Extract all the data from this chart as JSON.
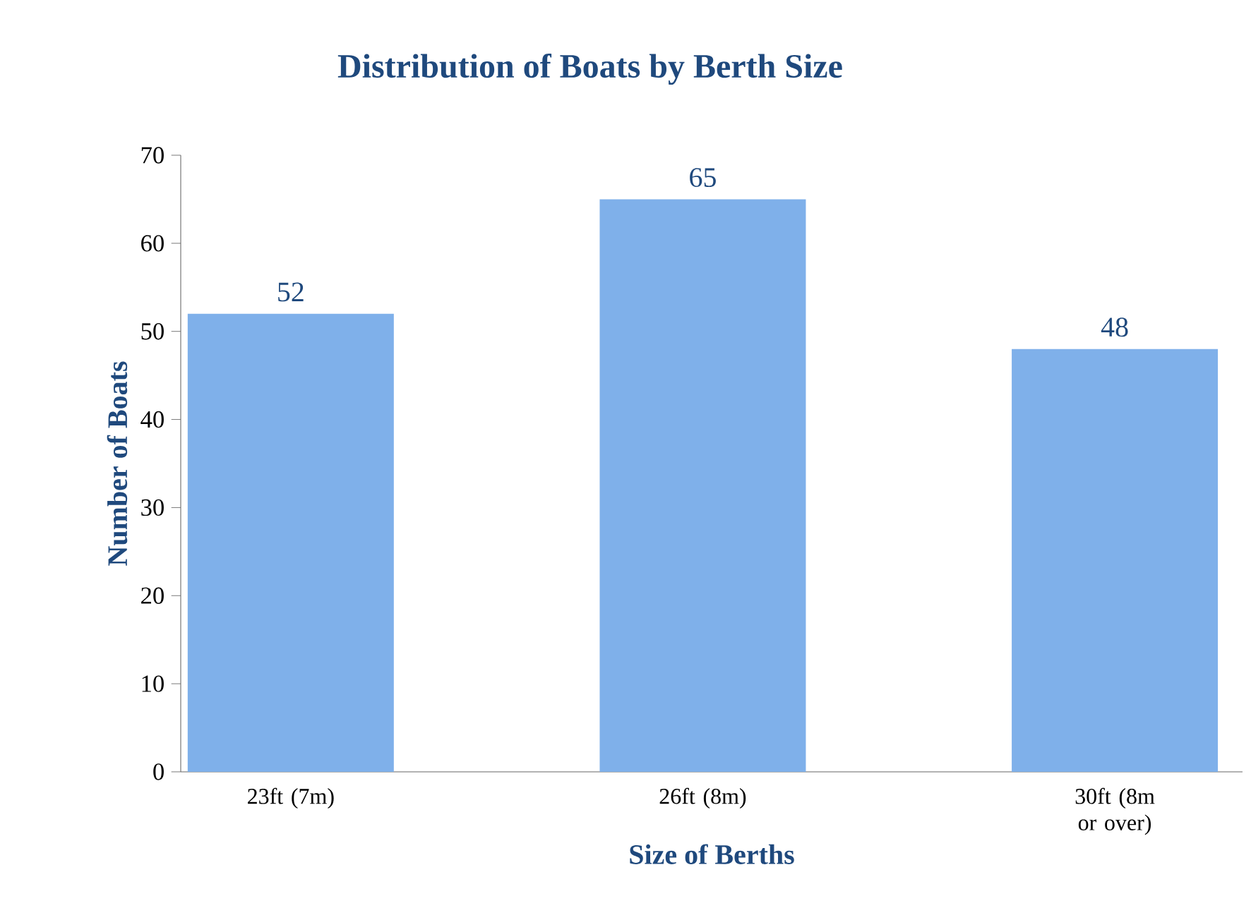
{
  "chart_data": {
    "type": "bar",
    "title": "Distribution of Boats by Berth Size",
    "xlabel": "Size of Berths",
    "ylabel": "Number of Boats",
    "categories": [
      "23ft (7m)",
      "26ft (8m)",
      "30ft (8m or over)"
    ],
    "values": [
      52,
      65,
      48
    ],
    "color": "#7fb0ea",
    "data_labels": true,
    "ylim": [
      0,
      70
    ],
    "yticks": [
      0,
      10,
      20,
      30,
      40,
      50,
      60,
      70
    ]
  }
}
